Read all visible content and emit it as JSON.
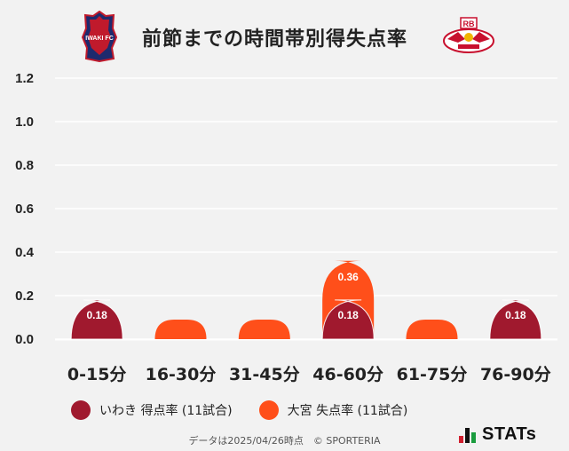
{
  "header": {
    "title": "前節までの時間帯別得失点率",
    "home_crest_text": "IWAKI FC",
    "away_crest_text": "RB"
  },
  "chart_data": {
    "type": "bar",
    "title": "前節までの時間帯別得失点率",
    "categories": [
      "0-15分",
      "16-30分",
      "31-45分",
      "46-60分",
      "61-75分",
      "76-90分"
    ],
    "series": [
      {
        "name": "いわき 得点率 (11試合)",
        "color": "#a0192e",
        "values": [
          0.18,
          0,
          0,
          0.18,
          0,
          0.18
        ]
      },
      {
        "name": "大宮 失点率 (11試合)",
        "color": "#ff4f1a",
        "values": [
          0,
          0.09,
          0.09,
          0.36,
          0.09,
          0
        ]
      }
    ],
    "ylim": [
      0,
      1.2
    ],
    "yticks": [
      "0.0",
      "0.2",
      "0.4",
      "0.6",
      "0.8",
      "1.0",
      "1.2"
    ],
    "ytick_values": [
      0,
      0.2,
      0.4,
      0.6,
      0.8,
      1.0,
      1.2
    ],
    "data_labels": [
      {
        "series": 0,
        "index": 0,
        "text": "0.18"
      },
      {
        "series": 0,
        "index": 3,
        "text": "0.18"
      },
      {
        "series": 0,
        "index": 5,
        "text": "0.18"
      },
      {
        "series": 1,
        "index": 3,
        "text": "0.36"
      }
    ],
    "grid": true,
    "legend": "bottom"
  },
  "legend": {
    "home_label": "いわき 得点率 (11試合)",
    "away_label": "大宮 失点率 (11試合)"
  },
  "colors": {
    "home": "#a0192e",
    "away": "#ff4f1a",
    "background": "#f2f2f2"
  },
  "footer": {
    "note": "データは2025/04/26時点　© SPORTERIA",
    "brand": "STATs"
  }
}
